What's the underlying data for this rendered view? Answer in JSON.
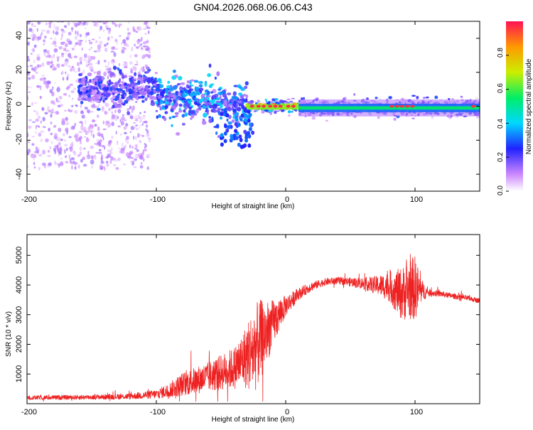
{
  "title": "GN04.2026.068.06.06.C43",
  "colors": {
    "snr_line": "#ee2222",
    "axis": "#000000",
    "background": "#ffffff"
  },
  "chart_data": [
    {
      "type": "heatmap",
      "name": "spectrogram",
      "xlabel": "Height of straight line (km)",
      "ylabel": "Frequency (Hz)",
      "xlim": [
        -200,
        150
      ],
      "ylim": [
        -50,
        50
      ],
      "xticks": [
        "-200",
        "-100",
        "0",
        "100"
      ],
      "yticks": [
        "40",
        "20",
        "0",
        "-20",
        "-40"
      ],
      "colorbar": {
        "label": "Normalized spectral amplitude",
        "range": [
          0,
          1
        ],
        "ticks": [
          "0.0",
          "0.2",
          "0.4",
          "0.6",
          "0.8"
        ]
      },
      "bands": [
        {
          "x": [
            -200,
            -105
          ],
          "center_hz": 8,
          "spread_hz": 45,
          "amplitude": 0.12,
          "description": "diffuse scatter"
        },
        {
          "x": [
            -160,
            -100
          ],
          "center_hz": 10,
          "spread_hz": 8,
          "amplitude": 0.25
        },
        {
          "x": [
            -100,
            -30
          ],
          "center_hz": 5,
          "spread_hz": 10,
          "amplitude": 0.35
        },
        {
          "x": [
            -30,
            10
          ],
          "center_hz": 0,
          "spread_hz": 3,
          "amplitude": 0.9
        },
        {
          "x": [
            10,
            150
          ],
          "center_hz": -1,
          "spread_hz": 4,
          "amplitude": 0.6
        }
      ]
    },
    {
      "type": "line",
      "name": "snr",
      "xlabel": "Height of straight line (km)",
      "ylabel": "SNR (10 * v/v)",
      "xlim": [
        -200,
        150
      ],
      "ylim": [
        0,
        5700
      ],
      "xticks": [
        "-200",
        "-100",
        "0",
        "100"
      ],
      "yticks": [
        "1000",
        "2000",
        "3000",
        "4000",
        "5000"
      ],
      "series": [
        {
          "name": "SNR",
          "envelope": {
            "x": [
              -200,
              -150,
              -120,
              -100,
              -90,
              -80,
              -60,
              -40,
              -30,
              -25,
              -20,
              -10,
              0,
              10,
              20,
              30,
              40,
              50,
              60,
              70,
              80,
              85,
              90,
              95,
              100,
              105,
              110,
              120,
              130,
              140,
              150
            ],
            "mean": [
              200,
              220,
              250,
              320,
              450,
              650,
              900,
              1200,
              1600,
              1800,
              2100,
              2700,
              3300,
              3700,
              3950,
              4100,
              4150,
              4100,
              4050,
              4000,
              3950,
              3800,
              3700,
              3850,
              3900,
              3800,
              3750,
              3700,
              3620,
              3560,
              3470
            ],
            "noise": [
              70,
              80,
              100,
              150,
              250,
              400,
              500,
              700,
              1100,
              1500,
              1400,
              800,
              350,
              200,
              150,
              120,
              120,
              150,
              200,
              300,
              500,
              700,
              900,
              1000,
              1100,
              400,
              120,
              100,
              90,
              90,
              80
            ]
          }
        }
      ]
    }
  ]
}
